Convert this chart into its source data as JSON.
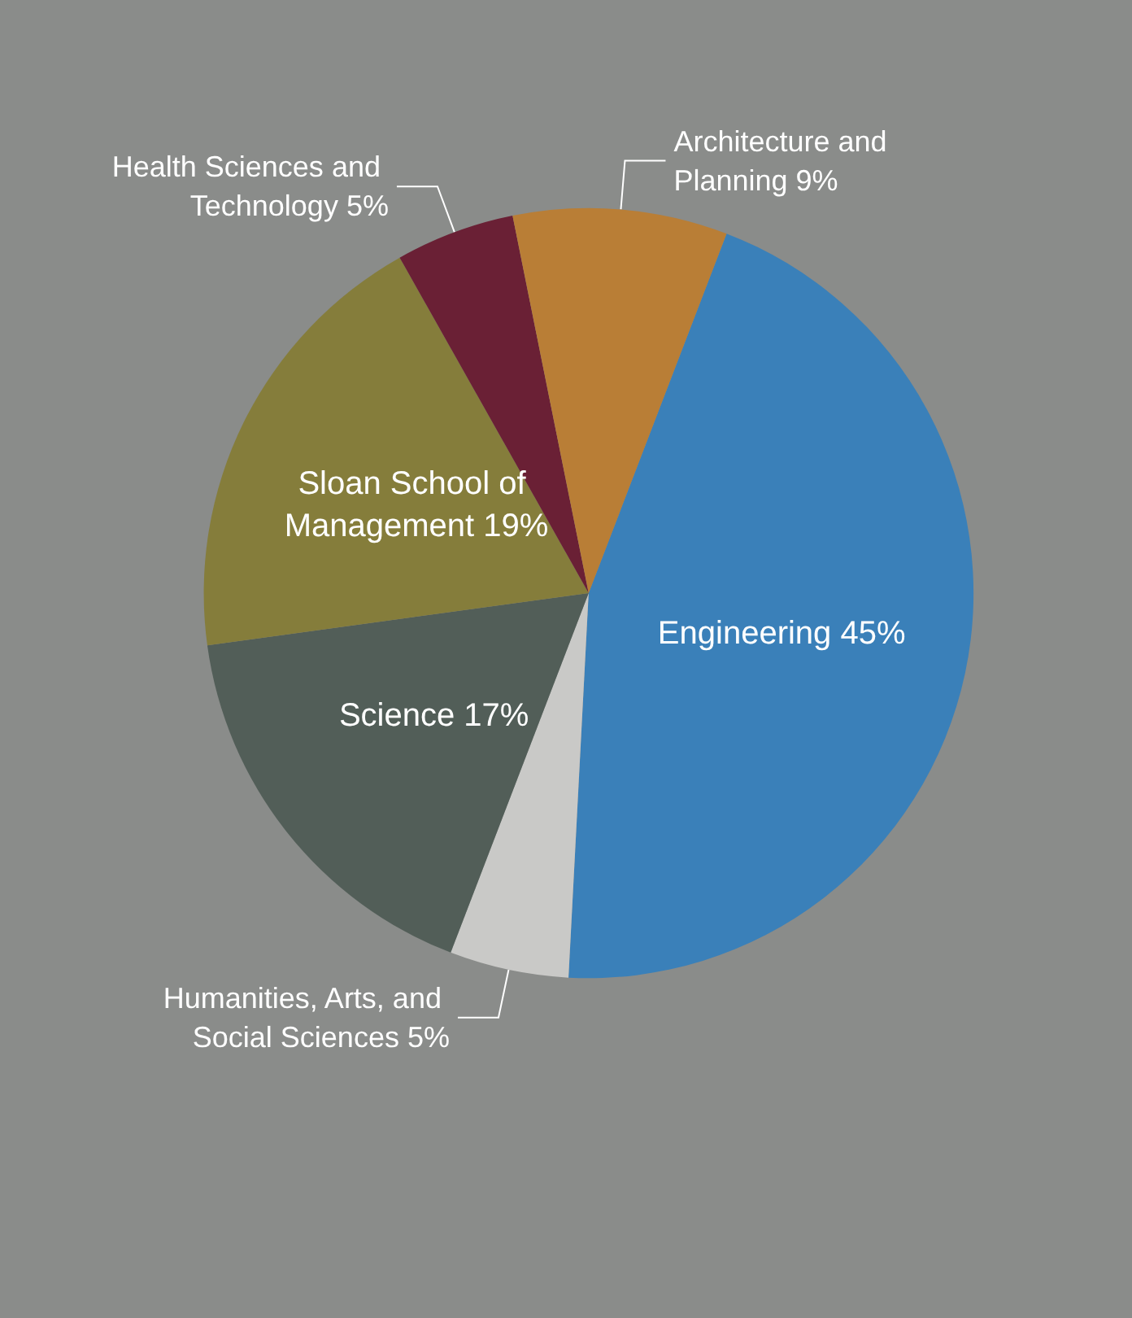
{
  "chart_data": {
    "type": "pie",
    "categories": [
      "Engineering",
      "Humanities, Arts, and Social Sciences",
      "Science",
      "Sloan School of Management",
      "Health Sciences and Technology",
      "Architecture and Planning"
    ],
    "values": [
      45,
      5,
      17,
      19,
      5,
      9
    ],
    "value_labels": [
      "45%",
      "5%",
      "17%",
      "19%",
      "5%",
      "9%"
    ],
    "colors": [
      "#3a80b9",
      "#c9c9c7",
      "#525e58",
      "#857d3b",
      "#6a2035",
      "#b97e36"
    ],
    "legend": false
  }
}
